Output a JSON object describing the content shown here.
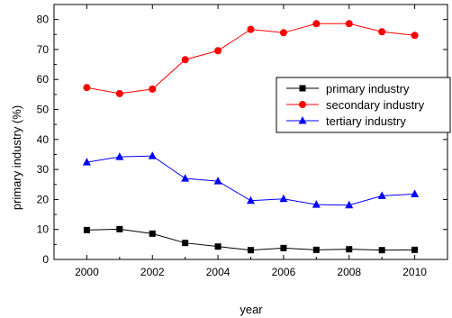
{
  "chart_data": {
    "type": "line",
    "xlabel": "year",
    "ylabel": "primary industry (%)",
    "xlim": [
      1999,
      2011
    ],
    "ylim": [
      0,
      85
    ],
    "xticks": [
      2000,
      2002,
      2004,
      2006,
      2008,
      2010
    ],
    "yticks": [
      0,
      10,
      20,
      30,
      40,
      50,
      60,
      70,
      80
    ],
    "x": [
      2000,
      2001,
      2002,
      2003,
      2004,
      2005,
      2006,
      2007,
      2008,
      2009,
      2010
    ],
    "legend_position": "right",
    "grid": false,
    "series": [
      {
        "name": "primary industry",
        "color": "#000000",
        "marker": "square",
        "values": [
          9.8,
          10.1,
          8.6,
          5.5,
          4.3,
          3.1,
          3.8,
          3.2,
          3.4,
          3.1,
          3.2
        ]
      },
      {
        "name": "secondary industry",
        "color": "#ff0000",
        "marker": "circle",
        "values": [
          57.3,
          55.3,
          56.8,
          66.6,
          69.6,
          76.7,
          75.6,
          78.6,
          78.6,
          75.9,
          74.7
        ]
      },
      {
        "name": "tertiary industry",
        "color": "#0000ff",
        "marker": "triangle",
        "values": [
          32.4,
          34.2,
          34.5,
          27.0,
          26.1,
          19.6,
          20.2,
          18.3,
          18.1,
          21.2,
          21.8
        ]
      }
    ]
  }
}
